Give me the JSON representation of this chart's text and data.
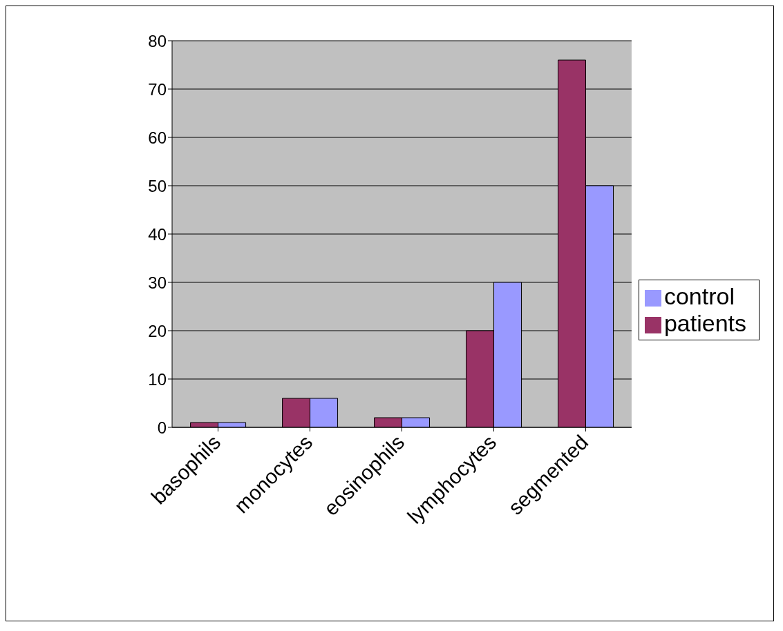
{
  "chart_data": {
    "type": "bar",
    "categories": [
      "basophils",
      "monocytes",
      "eosinophils",
      "lymphocytes",
      "segmented"
    ],
    "series": [
      {
        "name": "patients",
        "color": "#993366",
        "values": [
          1,
          6,
          2,
          20,
          76
        ]
      },
      {
        "name": "control",
        "color": "#9999ff",
        "values": [
          1,
          6,
          2,
          30,
          50
        ]
      }
    ],
    "ylim": [
      0,
      80
    ],
    "yticks": [
      0,
      10,
      20,
      30,
      40,
      50,
      60,
      70,
      80
    ],
    "grid": "y",
    "legend": "right"
  }
}
